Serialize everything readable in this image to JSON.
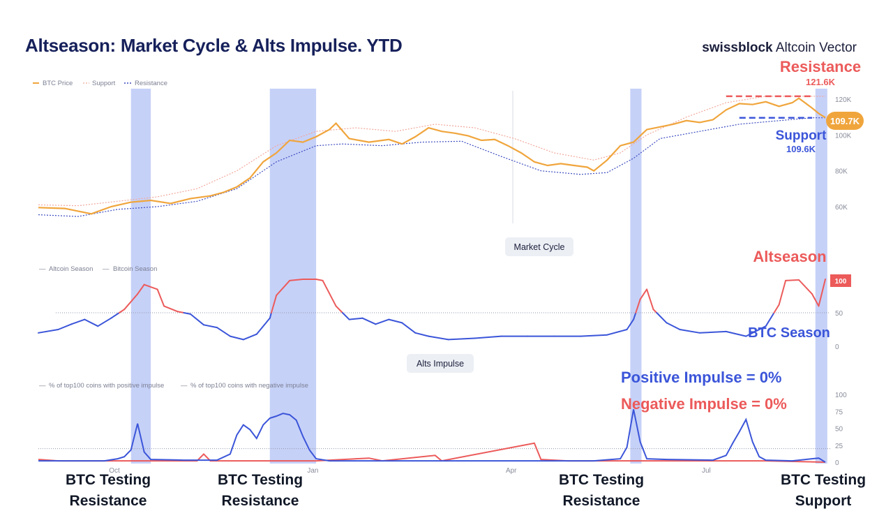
{
  "title": "Altseason: Market Cycle & Alts Impulse. YTD",
  "brand": {
    "bold": "swissblock",
    "rest": " Altcoin Vector"
  },
  "colors": {
    "btc": "#f0a53c",
    "support": "#3b4bbf",
    "resistance": "#e8616b",
    "highlight": "#bcc9f7",
    "blue": "#3b55d9",
    "red": "#ec5a5a",
    "navy": "#16205a"
  },
  "chart_data": [
    {
      "type": "line",
      "name": "Market Cycle price panel",
      "legend": [
        "BTC Price",
        "Support",
        "Resistance"
      ],
      "y_ticks": [
        "120K",
        "100K",
        "80K",
        "60K"
      ],
      "x_ticks": [
        "Oct",
        "Jan",
        "Apr",
        "Jul"
      ],
      "ylim": [
        55000,
        125000
      ],
      "btc_price": [
        [
          0,
          59500
        ],
        [
          4,
          59000
        ],
        [
          8,
          56000
        ],
        [
          11,
          60000
        ],
        [
          14,
          62500
        ],
        [
          17,
          63500
        ],
        [
          20,
          61800
        ],
        [
          23,
          64500
        ],
        [
          26,
          66000
        ],
        [
          28,
          68000
        ],
        [
          30,
          71000
        ],
        [
          32,
          76000
        ],
        [
          34,
          85000
        ],
        [
          36,
          90000
        ],
        [
          38,
          97000
        ],
        [
          40,
          96000
        ],
        [
          42,
          99000
        ],
        [
          44,
          103000
        ],
        [
          45,
          106500
        ],
        [
          47,
          98000
        ],
        [
          50,
          96000
        ],
        [
          53,
          97500
        ],
        [
          55,
          95000
        ],
        [
          57,
          99000
        ],
        [
          59,
          104000
        ],
        [
          61,
          102000
        ],
        [
          63,
          101000
        ],
        [
          65,
          99500
        ],
        [
          67,
          97000
        ],
        [
          69,
          97500
        ],
        [
          71,
          94000
        ],
        [
          73,
          90000
        ],
        [
          75,
          85000
        ],
        [
          77,
          83000
        ],
        [
          79,
          84000
        ],
        [
          81,
          83000
        ],
        [
          83,
          82000
        ],
        [
          84,
          80000
        ],
        [
          86,
          86000
        ],
        [
          88,
          94000
        ],
        [
          90,
          96000
        ],
        [
          92,
          103000
        ],
        [
          94,
          104500
        ],
        [
          96,
          106000
        ],
        [
          98,
          108000
        ],
        [
          100,
          107000
        ],
        [
          102,
          108500
        ],
        [
          104,
          114000
        ],
        [
          106,
          117500
        ],
        [
          108,
          117000
        ],
        [
          110,
          118500
        ],
        [
          112,
          116000
        ],
        [
          114,
          118000
        ],
        [
          115,
          120500
        ],
        [
          117,
          115000
        ],
        [
          118,
          112000
        ],
        [
          119,
          109700
        ]
      ],
      "support": [
        [
          0,
          55500
        ],
        [
          6,
          54500
        ],
        [
          12,
          58500
        ],
        [
          18,
          60000
        ],
        [
          24,
          63000
        ],
        [
          30,
          70000
        ],
        [
          36,
          85000
        ],
        [
          42,
          94000
        ],
        [
          46,
          95000
        ],
        [
          52,
          94000
        ],
        [
          58,
          96000
        ],
        [
          64,
          96500
        ],
        [
          70,
          88000
        ],
        [
          76,
          80000
        ],
        [
          82,
          78000
        ],
        [
          86,
          79000
        ],
        [
          90,
          87000
        ],
        [
          94,
          98000
        ],
        [
          100,
          102000
        ],
        [
          106,
          106000
        ],
        [
          112,
          108000
        ],
        [
          117,
          109600
        ],
        [
          119,
          109600
        ]
      ],
      "resistance": [
        [
          0,
          61000
        ],
        [
          6,
          60500
        ],
        [
          12,
          63000
        ],
        [
          18,
          65500
        ],
        [
          24,
          70000
        ],
        [
          30,
          80000
        ],
        [
          36,
          94000
        ],
        [
          42,
          102000
        ],
        [
          48,
          104000
        ],
        [
          54,
          102000
        ],
        [
          60,
          106000
        ],
        [
          66,
          104000
        ],
        [
          72,
          98000
        ],
        [
          78,
          90000
        ],
        [
          84,
          86000
        ],
        [
          88,
          90000
        ],
        [
          92,
          100000
        ],
        [
          98,
          110000
        ],
        [
          104,
          118000
        ],
        [
          110,
          121600
        ],
        [
          117,
          121600
        ],
        [
          119,
          121600
        ]
      ],
      "annotations": {
        "resistance_label": "Resistance",
        "resistance_value": "121.6K",
        "support_label": "Support",
        "support_value": "109.6K",
        "last_price": "109.7K"
      }
    },
    {
      "type": "line",
      "name": "Market Cycle season panel",
      "pill": "Market Cycle",
      "legend": [
        "Altcoin Season",
        "Bitcoin Season"
      ],
      "y_ticks": [
        "100",
        "50",
        "0"
      ],
      "ylim": [
        0,
        100
      ],
      "threshold": 50,
      "season": [
        [
          0,
          20
        ],
        [
          3,
          25
        ],
        [
          5,
          33
        ],
        [
          7,
          40
        ],
        [
          9,
          30
        ],
        [
          11,
          42
        ],
        [
          13,
          55
        ],
        [
          15,
          78
        ],
        [
          16,
          92
        ],
        [
          18,
          85
        ],
        [
          19,
          60
        ],
        [
          21,
          52
        ],
        [
          23,
          48
        ],
        [
          25,
          32
        ],
        [
          27,
          28
        ],
        [
          29,
          15
        ],
        [
          31,
          10
        ],
        [
          33,
          18
        ],
        [
          35,
          42
        ],
        [
          36,
          76
        ],
        [
          38,
          98
        ],
        [
          40,
          100
        ],
        [
          42,
          100
        ],
        [
          43,
          98
        ],
        [
          45,
          60
        ],
        [
          47,
          40
        ],
        [
          49,
          42
        ],
        [
          51,
          33
        ],
        [
          53,
          40
        ],
        [
          55,
          35
        ],
        [
          57,
          20
        ],
        [
          59,
          15
        ],
        [
          62,
          10
        ],
        [
          66,
          12
        ],
        [
          70,
          15
        ],
        [
          74,
          15
        ],
        [
          78,
          15
        ],
        [
          82,
          15
        ],
        [
          86,
          17
        ],
        [
          89,
          25
        ],
        [
          90,
          40
        ],
        [
          91,
          70
        ],
        [
          92,
          85
        ],
        [
          93,
          55
        ],
        [
          95,
          35
        ],
        [
          97,
          25
        ],
        [
          100,
          20
        ],
        [
          104,
          22
        ],
        [
          107,
          15
        ],
        [
          110,
          30
        ],
        [
          112,
          62
        ],
        [
          113,
          98
        ],
        [
          115,
          99
        ],
        [
          117,
          78
        ],
        [
          118,
          60
        ],
        [
          119,
          100
        ]
      ],
      "annotations": {
        "altseason": "Altseason",
        "btc_season": "BTC Season",
        "last_value": "100"
      }
    },
    {
      "type": "line",
      "name": "Alts Impulse panel",
      "pill": "Alts Impulse",
      "legend": [
        "% of top100 coins with positive impulse",
        "% of top100 coins with negative impulse"
      ],
      "y_ticks": [
        "100",
        "75",
        "50",
        "25",
        "0"
      ],
      "ylim": [
        0,
        100
      ],
      "threshold": 20,
      "positive": [
        [
          0,
          2
        ],
        [
          10,
          2
        ],
        [
          12,
          5
        ],
        [
          13,
          8
        ],
        [
          14,
          18
        ],
        [
          15,
          57
        ],
        [
          16,
          15
        ],
        [
          17,
          4
        ],
        [
          22,
          3
        ],
        [
          25,
          3
        ],
        [
          27,
          3
        ],
        [
          29,
          12
        ],
        [
          30,
          40
        ],
        [
          31,
          55
        ],
        [
          32,
          48
        ],
        [
          33,
          35
        ],
        [
          34,
          55
        ],
        [
          35,
          65
        ],
        [
          36,
          68
        ],
        [
          37,
          72
        ],
        [
          38,
          70
        ],
        [
          39,
          62
        ],
        [
          40,
          38
        ],
        [
          41,
          18
        ],
        [
          42,
          5
        ],
        [
          44,
          2
        ],
        [
          56,
          2
        ],
        [
          70,
          2
        ],
        [
          84,
          2
        ],
        [
          88,
          5
        ],
        [
          89,
          22
        ],
        [
          90,
          78
        ],
        [
          91,
          30
        ],
        [
          92,
          5
        ],
        [
          95,
          4
        ],
        [
          102,
          3
        ],
        [
          104,
          10
        ],
        [
          105,
          28
        ],
        [
          106,
          45
        ],
        [
          107,
          63
        ],
        [
          108,
          30
        ],
        [
          109,
          8
        ],
        [
          110,
          3
        ],
        [
          114,
          2
        ],
        [
          117,
          5
        ],
        [
          118,
          6
        ],
        [
          119,
          0
        ]
      ],
      "negative": [
        [
          0,
          4
        ],
        [
          3,
          2
        ],
        [
          8,
          2
        ],
        [
          16,
          2
        ],
        [
          24,
          2
        ],
        [
          25,
          12
        ],
        [
          26,
          2
        ],
        [
          42,
          2
        ],
        [
          50,
          6
        ],
        [
          52,
          2
        ],
        [
          60,
          10
        ],
        [
          61,
          2
        ],
        [
          75,
          28
        ],
        [
          76,
          4
        ],
        [
          80,
          2
        ],
        [
          100,
          2
        ],
        [
          105,
          2
        ],
        [
          110,
          2
        ],
        [
          119,
          0
        ]
      ],
      "annotations": {
        "positive": "Positive Impulse = 0%",
        "negative": "Negative Impulse = 0%"
      }
    }
  ],
  "highlights": [
    {
      "start": 14,
      "end": 17,
      "label_line1": "BTC Testing",
      "label_line2": "Resistance"
    },
    {
      "start": 35,
      "end": 42,
      "label_line1": "BTC Testing",
      "label_line2": "Resistance"
    },
    {
      "start": 89.5,
      "end": 91.2,
      "label_line1": "BTC Testing",
      "label_line2": "Resistance"
    },
    {
      "start": 117.5,
      "end": 119.3,
      "label_line1": "BTC Testing",
      "label_line2": "Support"
    }
  ]
}
